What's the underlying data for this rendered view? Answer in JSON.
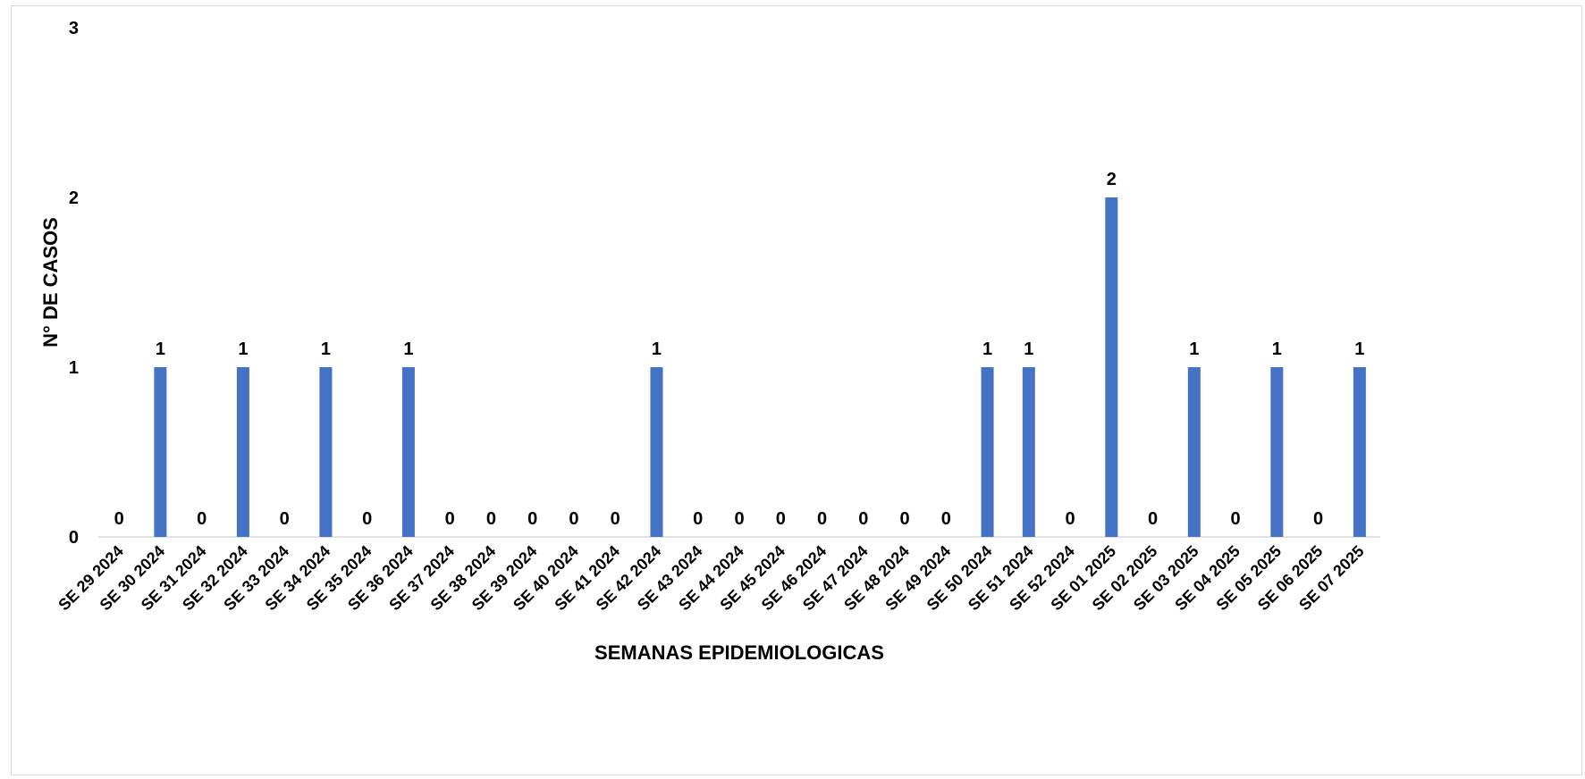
{
  "chart_data": {
    "type": "bar",
    "title": "",
    "xlabel": "SEMANAS EPIDEMIOLOGICAS",
    "ylabel": "N° DE CASOS",
    "ylim": [
      0,
      3
    ],
    "yticks": [
      "0",
      "1",
      "2",
      "3"
    ],
    "grid": false,
    "legend": "none",
    "bar_color": "#4472C4",
    "categories": [
      "SE 29 2024",
      "SE 30 2024",
      "SE 31 2024",
      "SE 32 2024",
      "SE 33 2024",
      "SE 34 2024",
      "SE 35 2024",
      "SE 36 2024",
      "SE 37 2024",
      "SE 38 2024",
      "SE 39 2024",
      "SE 40 2024",
      "SE 41 2024",
      "SE 42 2024",
      "SE 43 2024",
      "SE 44 2024",
      "SE 45 2024",
      "SE 46 2024",
      "SE 47 2024",
      "SE 48 2024",
      "SE 49 2024",
      "SE 50 2024",
      "SE 51 2024",
      "SE 52 2024",
      "SE 01 2025",
      "SE 02 2025",
      "SE 03 2025",
      "SE 04 2025",
      "SE 05 2025",
      "SE 06 2025",
      "SE 07 2025"
    ],
    "values": [
      0,
      1,
      0,
      1,
      0,
      1,
      0,
      1,
      0,
      0,
      0,
      0,
      0,
      1,
      0,
      0,
      0,
      0,
      0,
      0,
      0,
      1,
      1,
      0,
      2,
      0,
      1,
      0,
      1,
      0,
      1
    ],
    "data_labels": [
      "0",
      "1",
      "0",
      "1",
      "0",
      "1",
      "0",
      "1",
      "0",
      "0",
      "0",
      "0",
      "0",
      "1",
      "0",
      "0",
      "0",
      "0",
      "0",
      "0",
      "0",
      "1",
      "1",
      "0",
      "2",
      "0",
      "1",
      "0",
      "1",
      "0",
      "1"
    ]
  }
}
